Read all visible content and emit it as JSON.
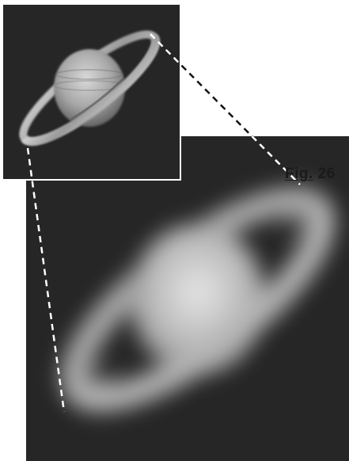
{
  "figure": {
    "label_prefix": "Fig.",
    "label_number": "26"
  },
  "colors": {
    "background": "#ffffff",
    "panel_bg": "#262626",
    "dash_line": "#ffffff",
    "inset_border": "#ffffff",
    "label_text": "#1a1a1a"
  }
}
